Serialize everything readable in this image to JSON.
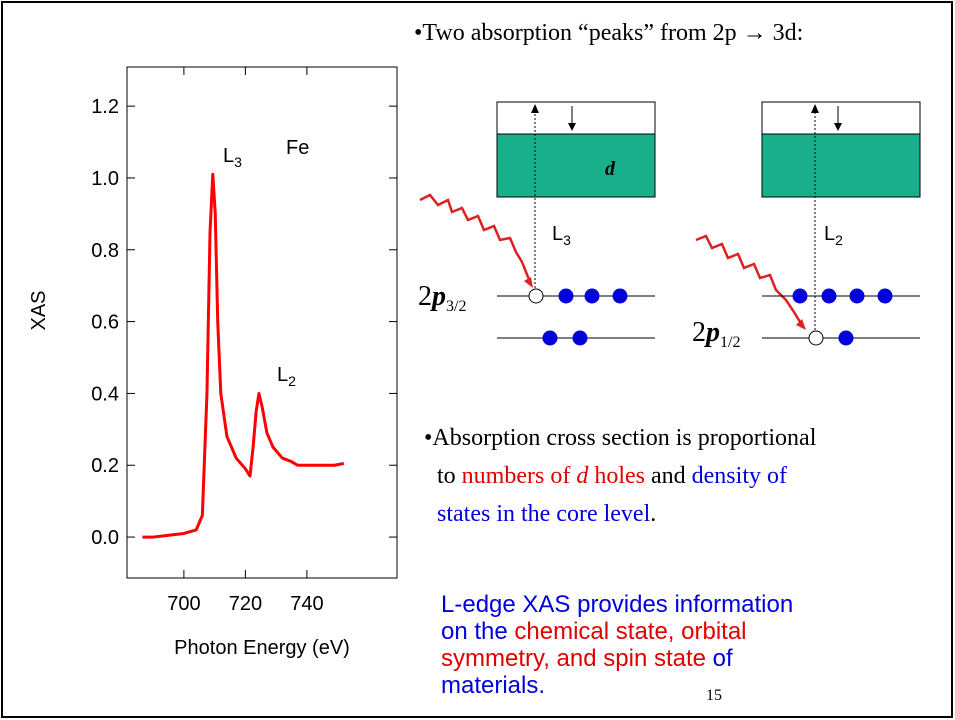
{
  "chart_data": {
    "type": "line",
    "ylabel": "XAS",
    "xlabel": "Photon Energy (eV)",
    "xlim": [
      681.5,
      769.3
    ],
    "ylim": [
      -0.114,
      1.309
    ],
    "xticks": [
      700,
      720,
      740
    ],
    "yticks": [
      {
        "value": 0,
        "label": "0.0"
      },
      {
        "value": 0.2,
        "label": "0.2"
      },
      {
        "value": 0.4,
        "label": "0.4"
      },
      {
        "value": 0.6,
        "label": "0.6"
      },
      {
        "value": 0.8,
        "label": "0.8"
      },
      {
        "value": 1.0,
        "label": "1.0"
      },
      {
        "value": 1.2,
        "label": "1.2"
      }
    ],
    "series": [
      {
        "color": "#ff0000",
        "x": [
          686.5,
          690,
          695,
          700,
          704,
          706,
          707.5,
          708.5,
          709.4,
          710.2,
          711,
          712,
          714,
          717,
          720,
          721.5,
          722.5,
          723.5,
          724.4,
          725.5,
          727,
          729,
          732,
          735,
          737,
          741,
          745,
          749,
          752
        ],
        "values": [
          0,
          0,
          0.005,
          0.01,
          0.02,
          0.06,
          0.4,
          0.85,
          1.01,
          0.9,
          0.6,
          0.4,
          0.28,
          0.22,
          0.19,
          0.17,
          0.25,
          0.35,
          0.4,
          0.36,
          0.29,
          0.25,
          0.22,
          0.21,
          0.2,
          0.2,
          0.2,
          0.2,
          0.205
        ]
      }
    ],
    "annotations": [
      {
        "text": "Fe"
      },
      {
        "text": "L",
        "sub": "3"
      },
      {
        "text": "L",
        "sub": "2"
      }
    ]
  },
  "diagram": {
    "heading": "•Two absorption “peaks” from 2p → 3d:",
    "band_label": "d",
    "left_transition": {
      "text": "L",
      "sub": "3"
    },
    "right_transition": {
      "text": "L",
      "sub": "2"
    },
    "left_level": {
      "main": "2",
      "p": "p",
      "sub": "3/2"
    },
    "right_level": {
      "main": "2",
      "p": "p",
      "sub": "1/2"
    }
  },
  "paragraph": {
    "lines": [
      [
        "•Absorption cross section is proportional"
      ],
      [
        "to ",
        "numbers of ",
        "d",
        " holes",
        " and ",
        "density of"
      ],
      [
        "states in the core level",
        "."
      ]
    ]
  },
  "summary": {
    "lines": [
      [
        "L-edge XAS provides information"
      ],
      [
        "on the ",
        "chemical state, orbital"
      ],
      [
        "symmetry, and spin state",
        " of"
      ],
      [
        "materials."
      ]
    ]
  },
  "page_number": "15"
}
